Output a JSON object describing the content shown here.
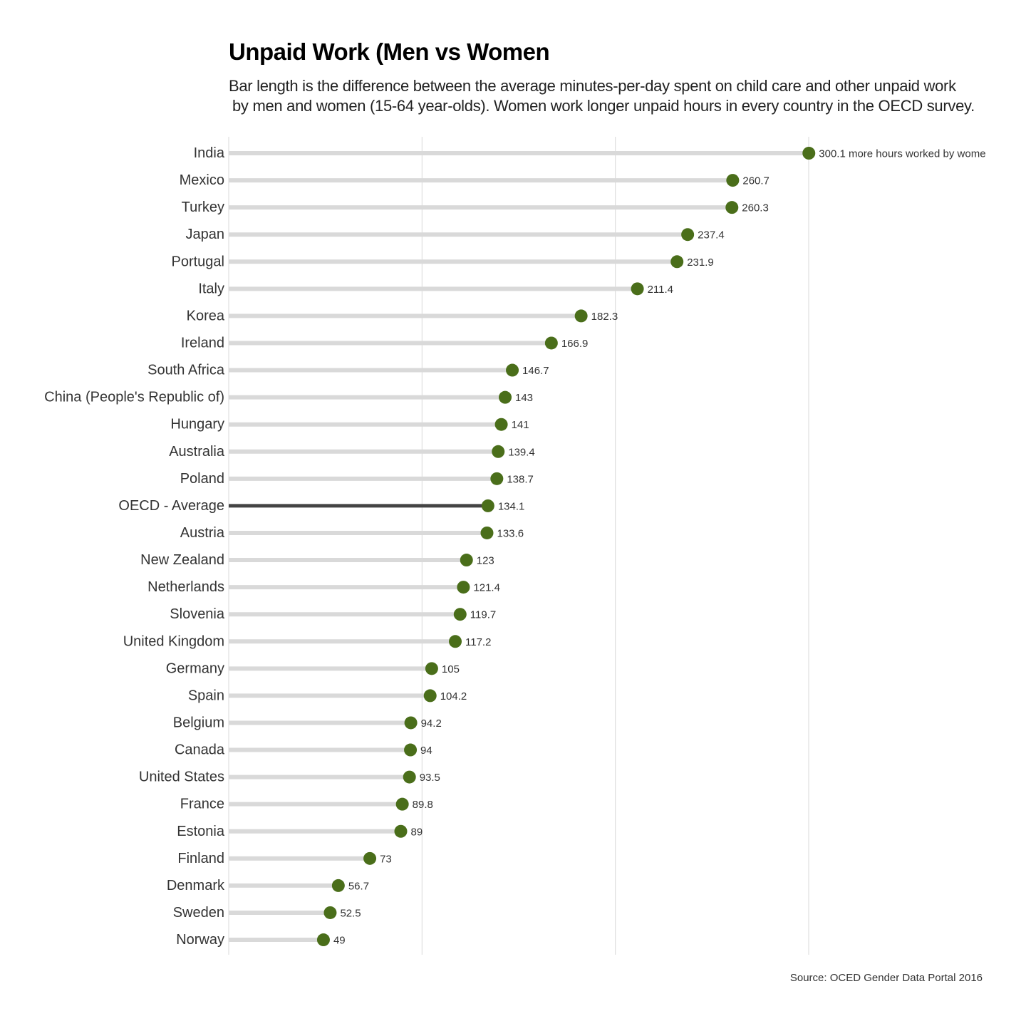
{
  "chart_data": {
    "type": "bar",
    "title": "Unpaid Work (Men vs Women",
    "subtitle_lines": [
      "Bar length is the difference between the average minutes-per-day spent on child care and other unpaid work",
      "by men and women (15-64 year-olds). Women work longer unpaid hours in every country in the OECD survey."
    ],
    "categories": [
      "India",
      "Mexico",
      "Turkey",
      "Japan",
      "Portugal",
      "Italy",
      "Korea",
      "Ireland",
      "South Africa",
      "China (People's Republic of)",
      "Hungary",
      "Australia",
      "Poland",
      "OECD - Average",
      "Austria",
      "New Zealand",
      "Netherlands",
      "Slovenia",
      "United Kingdom",
      "Germany",
      "Spain",
      "Belgium",
      "Canada",
      "United States",
      "France",
      "Estonia",
      "Finland",
      "Denmark",
      "Sweden",
      "Norway"
    ],
    "values": [
      300.1,
      260.7,
      260.3,
      237.4,
      231.9,
      211.4,
      182.3,
      166.9,
      146.7,
      143,
      141,
      139.4,
      138.7,
      134.1,
      133.6,
      123,
      121.4,
      119.7,
      117.2,
      105,
      104.2,
      94.2,
      94,
      93.5,
      89.8,
      89,
      73,
      56.7,
      52.5,
      49
    ],
    "value_labels": [
      "300.1 more hours worked by wome",
      "260.7",
      "260.3",
      "237.4",
      "231.9",
      "211.4",
      "182.3",
      "166.9",
      "146.7",
      "143",
      "141",
      "139.4",
      "138.7",
      "134.1",
      "133.6",
      "123",
      "121.4",
      "119.7",
      "117.2",
      "105",
      "104.2",
      "94.2",
      "94",
      "93.5",
      "89.8",
      "89",
      "73",
      "56.7",
      "52.5",
      "49"
    ],
    "highlight": "OECD - Average",
    "xlim": [
      0,
      300
    ],
    "gridlines_x": [
      0,
      100,
      200,
      300
    ],
    "grid": true,
    "xlabel": "",
    "ylabel": "",
    "colors": {
      "point": "#4a6e1a",
      "bar": "#d9d9d9",
      "highlight_bar": "#444444",
      "grid": "#d9d9d9"
    },
    "source": "Source: OCED Gender Data Portal 2016"
  }
}
